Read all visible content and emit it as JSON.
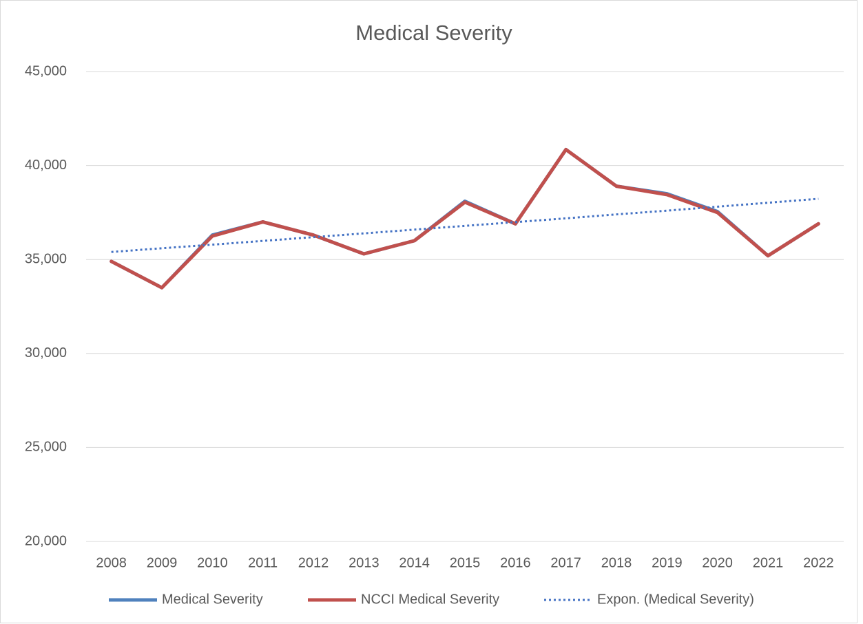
{
  "chart_data": {
    "type": "line",
    "title": "Medical Severity",
    "categories": [
      "2008",
      "2009",
      "2010",
      "2011",
      "2012",
      "2013",
      "2014",
      "2015",
      "2016",
      "2017",
      "2018",
      "2019",
      "2020",
      "2021",
      "2022"
    ],
    "series": [
      {
        "name": "Medical Severity",
        "color": "#4f81bd",
        "style": "solid",
        "values": [
          34900,
          33500,
          36300,
          37000,
          36300,
          35300,
          36000,
          38100,
          36900,
          40850,
          38900,
          38500,
          37550,
          35200,
          36900
        ]
      },
      {
        "name": "NCCI Medical Severity",
        "color": "#c0504d",
        "style": "solid",
        "values": [
          34900,
          33500,
          36250,
          37000,
          36300,
          35300,
          36000,
          38050,
          36900,
          40850,
          38900,
          38450,
          37500,
          35200,
          36900
        ]
      },
      {
        "name": "Expon. (Medical Severity)",
        "color": "#4472c4",
        "style": "dotted",
        "values": [
          35400,
          35600,
          35790,
          35990,
          36190,
          36390,
          36590,
          36790,
          36990,
          37190,
          37400,
          37600,
          37810,
          38020,
          38230
        ]
      }
    ],
    "ylim": [
      20000,
      45000
    ],
    "yticks": [
      {
        "value": 20000,
        "label": "20,000"
      },
      {
        "value": 25000,
        "label": "25,000"
      },
      {
        "value": 30000,
        "label": "30,000"
      },
      {
        "value": 35000,
        "label": "35,000"
      },
      {
        "value": 40000,
        "label": "40,000"
      },
      {
        "value": 45000,
        "label": "45,000"
      }
    ],
    "grid": true,
    "legend": "bottom"
  }
}
